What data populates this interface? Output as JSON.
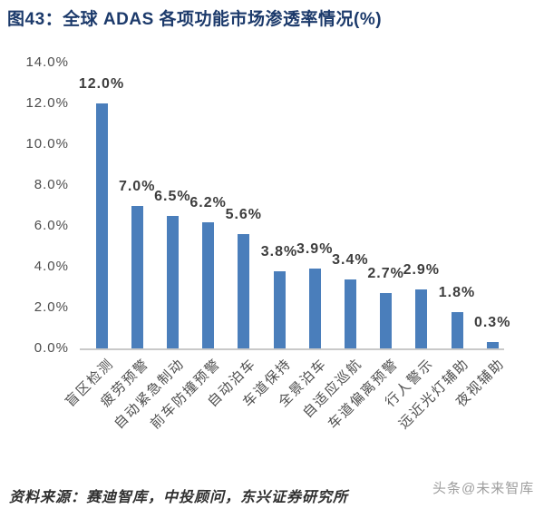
{
  "page": {
    "title": "图43：全球 ADAS 各项功能市场渗透率情况(%)",
    "source_note": "资料来源：赛迪智库，中投顾问，东兴证券研究所",
    "watermark": "头条@未来智库"
  },
  "colors": {
    "title": "#1c3a6b",
    "bar": "#4a7ebb",
    "value_label": "#3d3d3d",
    "axis_tick_label": "#4d4d4d",
    "category_label": "#4f4f4f",
    "baseline": "#c9c9c9",
    "source_note": "#303030",
    "watermark": "#9e9e9e",
    "background": "#ffffff"
  },
  "chart_data": {
    "type": "bar",
    "title": "全球 ADAS 各项功能市场渗透率情况(%)",
    "categories": [
      "盲区检测",
      "疲劳预警",
      "自动紧急制动",
      "前车防撞预警",
      "自动泊车",
      "车道保持",
      "全景泊车",
      "自适应巡航",
      "车道偏离预警",
      "行人警示",
      "远近光灯辅助",
      "夜视辅助"
    ],
    "values": [
      12.0,
      7.0,
      6.5,
      6.2,
      5.6,
      3.8,
      3.9,
      3.4,
      2.7,
      2.9,
      1.8,
      0.3
    ],
    "value_labels": [
      "12.0%",
      "7.0%",
      "6.5%",
      "6.2%",
      "5.6%",
      "3.8%",
      "3.9%",
      "3.4%",
      "2.7%",
      "2.9%",
      "1.8%",
      "0.3%"
    ],
    "xlabel": "",
    "ylabel": "",
    "ylim": [
      0,
      14
    ],
    "ytick_step": 2,
    "ytick_labels": [
      "0.0%",
      "2.0%",
      "4.0%",
      "6.0%",
      "8.0%",
      "10.0%",
      "12.0%",
      "14.0%"
    ],
    "grid": false,
    "legend_position": "none",
    "bar_color": "#4a7ebb"
  }
}
